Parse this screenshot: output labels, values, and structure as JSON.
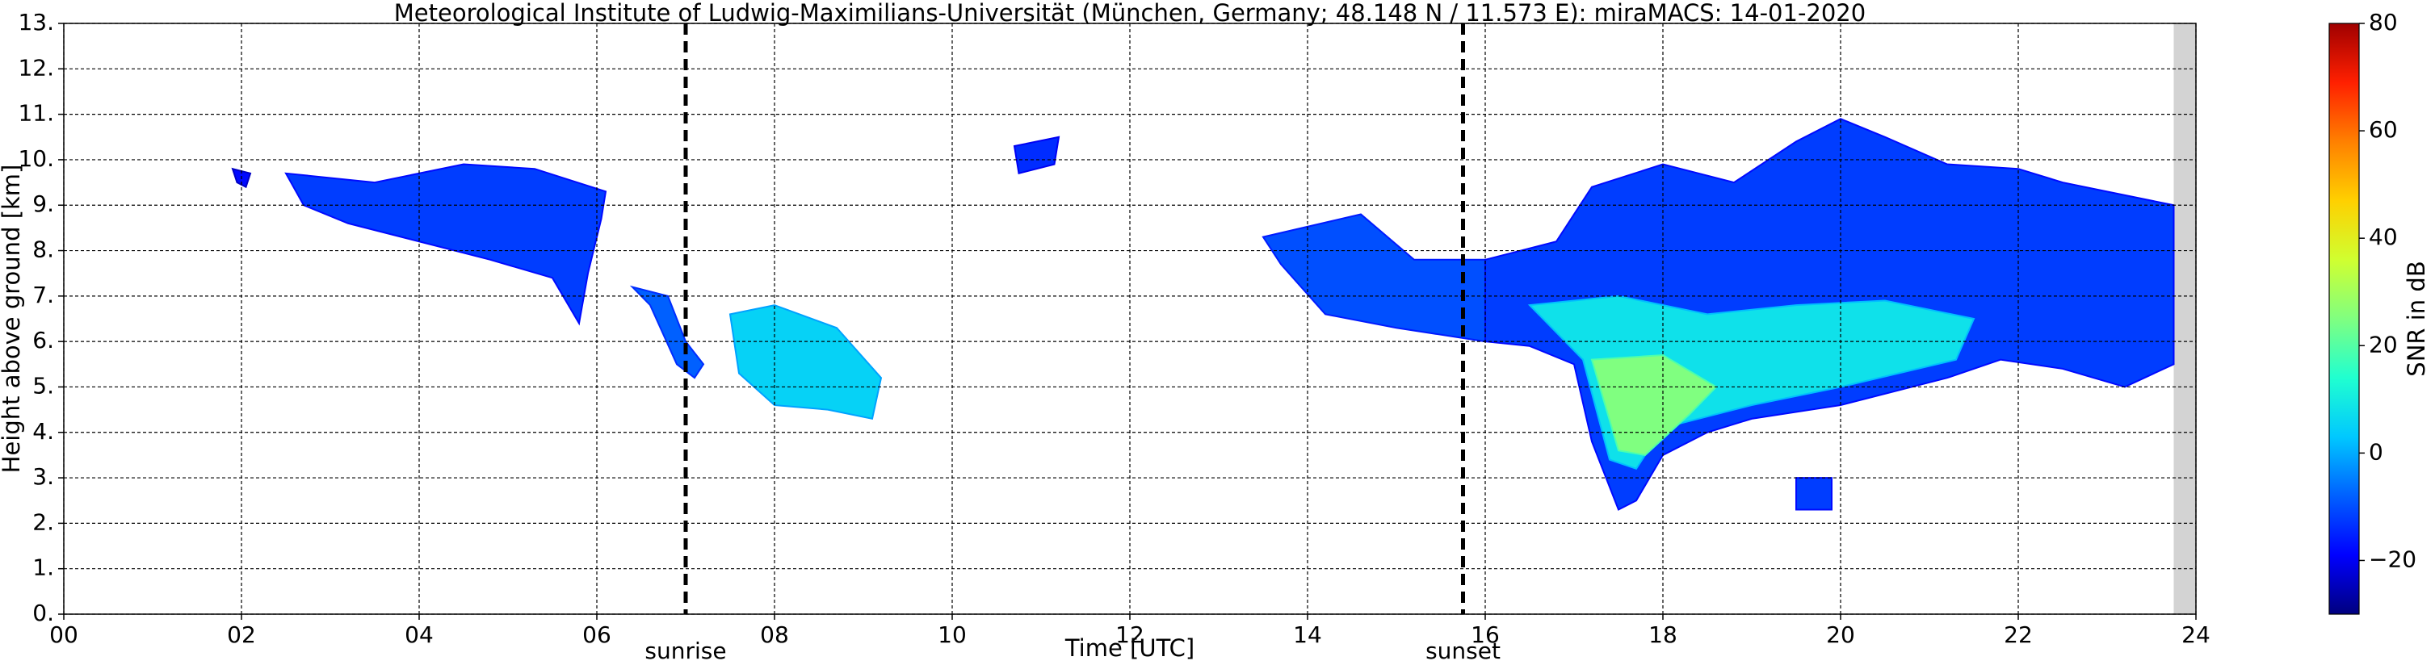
{
  "chart_data": {
    "type": "heatmap",
    "title": "Meteorological Institute of Ludwig-Maximilians-Universität (München, Germany; 48.148 N / 11.573 E):    miraMACS: 14-01-2020",
    "xlabel": "Time [UTC]",
    "ylabel": "Height above ground [km]",
    "xlim": [
      0,
      24
    ],
    "ylim": [
      0,
      13
    ],
    "xticks": [
      {
        "value": 0,
        "label": "00"
      },
      {
        "value": 2,
        "label": "02"
      },
      {
        "value": 4,
        "label": "04"
      },
      {
        "value": 6,
        "label": "06"
      },
      {
        "value": 8,
        "label": "08"
      },
      {
        "value": 10,
        "label": "10"
      },
      {
        "value": 12,
        "label": "12"
      },
      {
        "value": 14,
        "label": "14"
      },
      {
        "value": 16,
        "label": "16"
      },
      {
        "value": 18,
        "label": "18"
      },
      {
        "value": 20,
        "label": "20"
      },
      {
        "value": 22,
        "label": "22"
      },
      {
        "value": 24,
        "label": "24"
      }
    ],
    "yticks": [
      {
        "value": 0,
        "label": "0."
      },
      {
        "value": 1,
        "label": "1."
      },
      {
        "value": 2,
        "label": "2."
      },
      {
        "value": 3,
        "label": "3."
      },
      {
        "value": 4,
        "label": "4."
      },
      {
        "value": 5,
        "label": "5."
      },
      {
        "value": 6,
        "label": "6."
      },
      {
        "value": 7,
        "label": "7."
      },
      {
        "value": 8,
        "label": "8."
      },
      {
        "value": 9,
        "label": "9."
      },
      {
        "value": 10,
        "label": "10."
      },
      {
        "value": 11,
        "label": "11."
      },
      {
        "value": 12,
        "label": "12."
      },
      {
        "value": 13,
        "label": "13."
      }
    ],
    "grid": true,
    "no_data": [
      23.75,
      24
    ],
    "annotations": [
      {
        "text": "sunrise",
        "x": 7.0
      },
      {
        "text": "sunset",
        "x": 15.75
      }
    ],
    "colormap": [
      "#00007f",
      "#0000ff",
      "#0060ff",
      "#00c8ff",
      "#20ffd0",
      "#80ff80",
      "#d0ff30",
      "#ffd000",
      "#ff8000",
      "#ff2000",
      "#a00000"
    ],
    "colorbar": {
      "label": "SNR in dB",
      "lim": [
        -30,
        80
      ],
      "ticks": [
        {
          "value": -20,
          "label": "−20"
        },
        0,
        20,
        40,
        60,
        80
      ]
    },
    "echoes": [
      {
        "time": [
          1.9,
          2.1,
          2.05,
          1.95
        ],
        "height": [
          9.8,
          9.7,
          9.4,
          9.5
        ],
        "snr": -18
      },
      {
        "time": [
          2.5,
          3.5,
          4.5,
          5.3,
          6.1,
          6.05,
          5.9,
          5.8,
          5.5,
          4.8,
          4.0,
          3.2,
          2.7
        ],
        "height": [
          9.7,
          9.5,
          9.9,
          9.8,
          9.3,
          8.7,
          7.5,
          6.4,
          7.4,
          7.8,
          8.2,
          8.6,
          9.0
        ],
        "snr": -12
      },
      {
        "time": [
          6.4,
          6.8,
          7.0,
          7.2,
          7.1,
          6.9,
          6.6
        ],
        "height": [
          7.2,
          7.0,
          6.0,
          5.5,
          5.2,
          5.5,
          6.8
        ],
        "snr": -8
      },
      {
        "time": [
          7.5,
          8.0,
          8.7,
          9.2,
          9.1,
          8.6,
          8.0,
          7.6
        ],
        "height": [
          6.6,
          6.8,
          6.3,
          5.2,
          4.3,
          4.5,
          4.6,
          5.3
        ],
        "snr": 5
      },
      {
        "time": [
          10.7,
          11.2,
          11.15,
          10.75
        ],
        "height": [
          10.3,
          10.5,
          9.9,
          9.7
        ],
        "snr": -14
      },
      {
        "time": [
          13.5,
          14.6,
          15.2,
          16.0,
          16.0,
          15.0,
          14.2,
          13.7
        ],
        "height": [
          8.3,
          8.8,
          7.8,
          7.8,
          6.0,
          6.3,
          6.6,
          7.7
        ],
        "snr": -10
      },
      {
        "time": [
          16.0,
          16.8,
          17.2,
          18.0,
          18.8,
          19.5,
          20.0,
          20.5,
          21.2,
          22.0,
          22.5,
          23.0,
          23.75,
          23.75,
          23.2,
          22.5,
          21.8,
          21.2,
          20.0,
          19.0,
          18.5,
          18.0,
          17.7,
          17.5,
          17.2,
          17.0,
          16.5,
          16.0
        ],
        "height": [
          7.8,
          8.2,
          9.4,
          9.9,
          9.5,
          10.4,
          10.9,
          10.5,
          9.9,
          9.8,
          9.5,
          9.3,
          9.0,
          5.5,
          5.0,
          5.4,
          5.6,
          5.2,
          4.6,
          4.3,
          4.0,
          3.5,
          2.5,
          2.3,
          3.8,
          5.5,
          5.9,
          6.0
        ],
        "snr": -12
      },
      {
        "time": [
          16.5,
          17.5,
          18.5,
          19.5,
          20.5,
          21.5,
          21.3,
          20.0,
          19.0,
          18.0,
          17.7,
          17.4,
          17.1
        ],
        "height": [
          6.8,
          7.0,
          6.6,
          6.8,
          6.9,
          6.5,
          5.6,
          5.0,
          4.6,
          4.1,
          3.2,
          3.4,
          5.6
        ],
        "snr": 8
      },
      {
        "time": [
          17.2,
          18.0,
          18.6,
          18.3,
          17.8,
          17.5
        ],
        "height": [
          5.6,
          5.7,
          5.0,
          4.4,
          3.5,
          3.6
        ],
        "snr": 25
      },
      {
        "time": [
          19.5,
          19.9,
          19.9,
          19.5
        ],
        "height": [
          3.0,
          3.0,
          2.3,
          2.3
        ],
        "snr": -12
      }
    ]
  }
}
